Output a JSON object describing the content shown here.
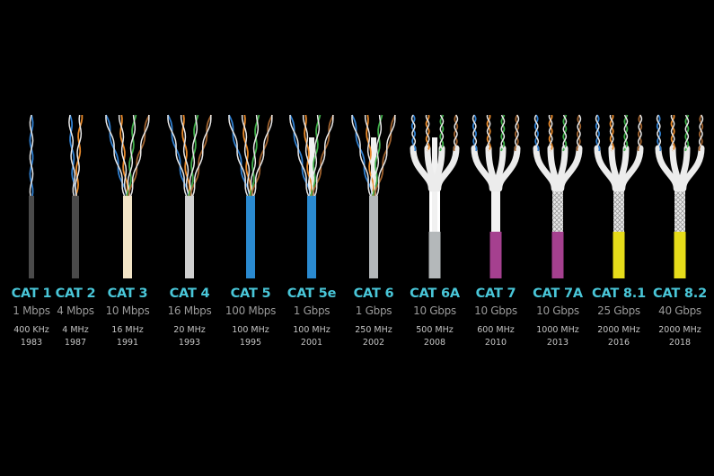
{
  "colors": {
    "background": "#000000",
    "name": "#49c6d8",
    "speed": "#9a9a9a",
    "detail": "#c4c4c4"
  },
  "categories": [
    {
      "name": "CAT 1",
      "speed": "1 Mbps",
      "frequency": "400 KHz",
      "year": "1983",
      "jacket": "#4a4a4a",
      "pairs": 1,
      "spline": false,
      "shield": "none",
      "boot": ""
    },
    {
      "name": "CAT 2",
      "speed": "4 Mbps",
      "frequency": "4 MHz",
      "year": "1987",
      "jacket": "#4a4a4a",
      "pairs": 2,
      "spline": false,
      "shield": "none",
      "boot": ""
    },
    {
      "name": "CAT 3",
      "speed": "10 Mbps",
      "frequency": "16 MHz",
      "year": "1991",
      "jacket": "#f2e4c6",
      "pairs": 4,
      "spline": false,
      "shield": "none",
      "boot": ""
    },
    {
      "name": "CAT 4",
      "speed": "16 Mbps",
      "frequency": "20 MHz",
      "year": "1993",
      "jacket": "#d0d0d0",
      "pairs": 4,
      "spline": false,
      "shield": "none",
      "boot": ""
    },
    {
      "name": "CAT 5",
      "speed": "100 Mbps",
      "frequency": "100 MHz",
      "year": "1995",
      "jacket": "#2a8ad0",
      "pairs": 4,
      "spline": false,
      "shield": "none",
      "boot": ""
    },
    {
      "name": "CAT 5e",
      "speed": "1 Gbps",
      "frequency": "100 MHz",
      "year": "2001",
      "jacket": "#2a8ad0",
      "pairs": 4,
      "spline": true,
      "shield": "none",
      "boot": ""
    },
    {
      "name": "CAT 6",
      "speed": "1 Gbps",
      "frequency": "250 MHz",
      "year": "2002",
      "jacket": "#b4b8ba",
      "pairs": 4,
      "spline": true,
      "shield": "none",
      "boot": ""
    },
    {
      "name": "CAT 6A",
      "speed": "10 Gbps",
      "frequency": "500 MHz",
      "year": "2008",
      "jacket": "#b4b8ba",
      "pairs": 4,
      "spline": true,
      "shield": "none",
      "boot": "#ffffff"
    },
    {
      "name": "CAT 7",
      "speed": "10 Gbps",
      "frequency": "600 MHz",
      "year": "2010",
      "jacket": "#a5408f",
      "pairs": 4,
      "spline": false,
      "shield": "foil",
      "boot": "#f2f2f2"
    },
    {
      "name": "CAT 7A",
      "speed": "10 Gbps",
      "frequency": "1000 MHz",
      "year": "2013",
      "jacket": "#a5408f",
      "pairs": 4,
      "spline": false,
      "shield": "braid",
      "boot": "#f2f2f2"
    },
    {
      "name": "CAT 8.1",
      "speed": "25 Gbps",
      "frequency": "2000 MHz",
      "year": "2016",
      "jacket": "#e6dc1a",
      "pairs": 4,
      "spline": false,
      "shield": "braid",
      "boot": "#f2f2f2"
    },
    {
      "name": "CAT 8.2",
      "speed": "40 Gbps",
      "frequency": "2000 MHz",
      "year": "2018",
      "jacket": "#e6dc1a",
      "pairs": 4,
      "spline": false,
      "shield": "braid",
      "boot": "#f2f2f2"
    }
  ]
}
